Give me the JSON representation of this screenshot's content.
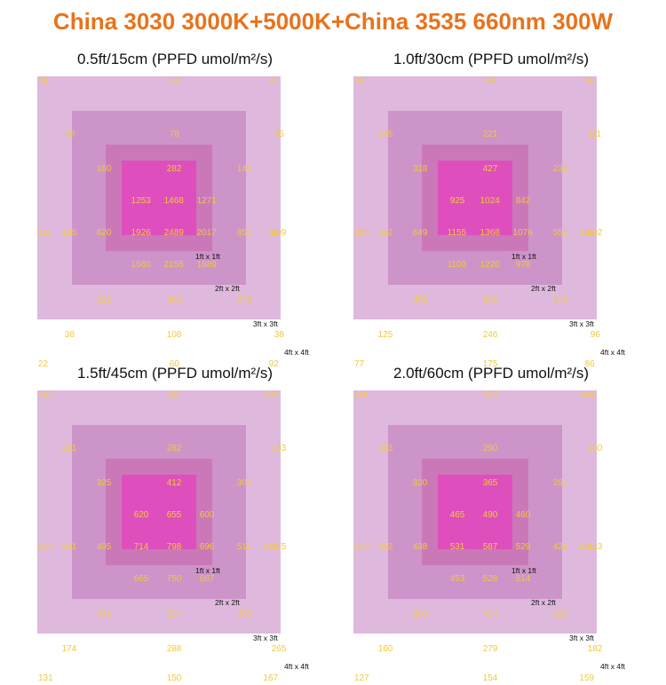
{
  "title": "China 3030 3000K+5000K+China 3535 660nm 300W",
  "colors": {
    "title": "#e8731c",
    "value": "#f0c93c",
    "label": "#111111",
    "ring4": "#dfb9dd",
    "ring3": "#cd94c9",
    "ring2": "#cb78b9",
    "ring1": "#de4fbd"
  },
  "chart_data": [
    {
      "type": "heatmap",
      "title": "0.5ft/15cm (PPFD umol/m²/s)",
      "zones": [
        "1ft x 1ft",
        "2ft x 2ft",
        "3ft x 3ft",
        "4ft x 4ft"
      ],
      "grid": [
        [
          "28",
          "",
          "",
          "54",
          "",
          "",
          "27"
        ],
        [
          "",
          "40",
          "",
          "78",
          "",
          "55",
          ""
        ],
        [
          "",
          "",
          "160",
          "282",
          "140",
          "",
          ""
        ],
        [
          "",
          "",
          "",
          "1253 1468 1271",
          "",
          "",
          ""
        ],
        [
          "111",
          "135",
          "620",
          "1926 2489 2017",
          "855",
          "109",
          "89"
        ],
        [
          "",
          "",
          "",
          "1560 2155 1689",
          "",
          "",
          ""
        ],
        [
          "",
          "",
          "212",
          "968",
          "272",
          "",
          ""
        ],
        [
          "",
          "38",
          "",
          "108",
          "",
          "38",
          ""
        ],
        [
          "22",
          "",
          "",
          "60",
          "",
          "",
          "92"
        ]
      ]
    },
    {
      "type": "heatmap",
      "title": "1.0ft/30cm (PPFD umol/m²/s)",
      "zones": [
        "1ft x 1ft",
        "2ft x 2ft",
        "3ft x 3ft",
        "4ft x 4ft"
      ],
      "grid": [
        [
          "76",
          "",
          "",
          "93",
          "",
          "",
          "69"
        ],
        [
          "",
          "145",
          "",
          "221",
          "",
          "111",
          ""
        ],
        [
          "",
          "",
          "318",
          "427",
          "238",
          "",
          ""
        ],
        [
          "",
          "",
          "",
          "925 1024 842",
          "",
          "",
          ""
        ],
        [
          "284",
          "342",
          "649",
          "1155 1368 1076",
          "555",
          "202",
          "193"
        ],
        [
          "",
          "",
          "",
          "1103 1220 978",
          "",
          "",
          ""
        ],
        [
          "",
          "",
          "359",
          "689",
          "343",
          "",
          ""
        ],
        [
          "",
          "125",
          "",
          "246",
          "",
          "96",
          ""
        ],
        [
          "77",
          "",
          "",
          "175",
          "",
          "",
          "86"
        ]
      ]
    },
    {
      "type": "heatmap",
      "title": "1.5ft/45cm (PPFD umol/m²/s)",
      "zones": [
        "1ft x 1ft",
        "2ft x 2ft",
        "3ft x 3ft",
        "4ft x 4ft"
      ],
      "grid": [
        [
          "157",
          "",
          "",
          "141",
          "",
          "",
          "120"
        ],
        [
          "",
          "221",
          "",
          "282",
          "",
          "183",
          ""
        ],
        [
          "",
          "",
          "325",
          "412",
          "301",
          "",
          ""
        ],
        [
          "",
          "",
          "",
          "620 655 600",
          "",
          "",
          ""
        ],
        [
          "310",
          "341",
          "495",
          "714 798 696",
          "511",
          "275",
          "210"
        ],
        [
          "",
          "",
          "",
          "665 750 667",
          "",
          "",
          ""
        ],
        [
          "",
          "",
          "341",
          "534",
          "355",
          "",
          ""
        ],
        [
          "",
          "174",
          "",
          "288",
          "",
          "265",
          ""
        ],
        [
          "131",
          "",
          "",
          "150",
          "",
          "",
          "167"
        ]
      ]
    },
    {
      "type": "heatmap",
      "title": "2.0ft/60cm (PPFD umol/m²/s)",
      "zones": [
        "1ft x 1ft",
        "2ft x 2ft",
        "3ft x 3ft",
        "4ft x 4ft"
      ],
      "grid": [
        [
          "118",
          "",
          "",
          "160",
          "",
          "",
          "134"
        ],
        [
          "",
          "263",
          "",
          "290",
          "",
          "230",
          ""
        ],
        [
          "",
          "",
          "320",
          "365",
          "291",
          "",
          ""
        ],
        [
          "",
          "",
          "",
          "465 490 460",
          "",
          "",
          ""
        ],
        [
          "276",
          "342",
          "438",
          "531 587 529",
          "426",
          "313",
          "281"
        ],
        [
          "",
          "",
          "",
          "453 528 514",
          "",
          "",
          ""
        ],
        [
          "",
          "",
          "283",
          "434",
          "320",
          "",
          ""
        ],
        [
          "",
          "160",
          "",
          "279",
          "",
          "182",
          ""
        ],
        [
          "127",
          "",
          "",
          "154",
          "",
          "",
          "159"
        ]
      ]
    }
  ]
}
